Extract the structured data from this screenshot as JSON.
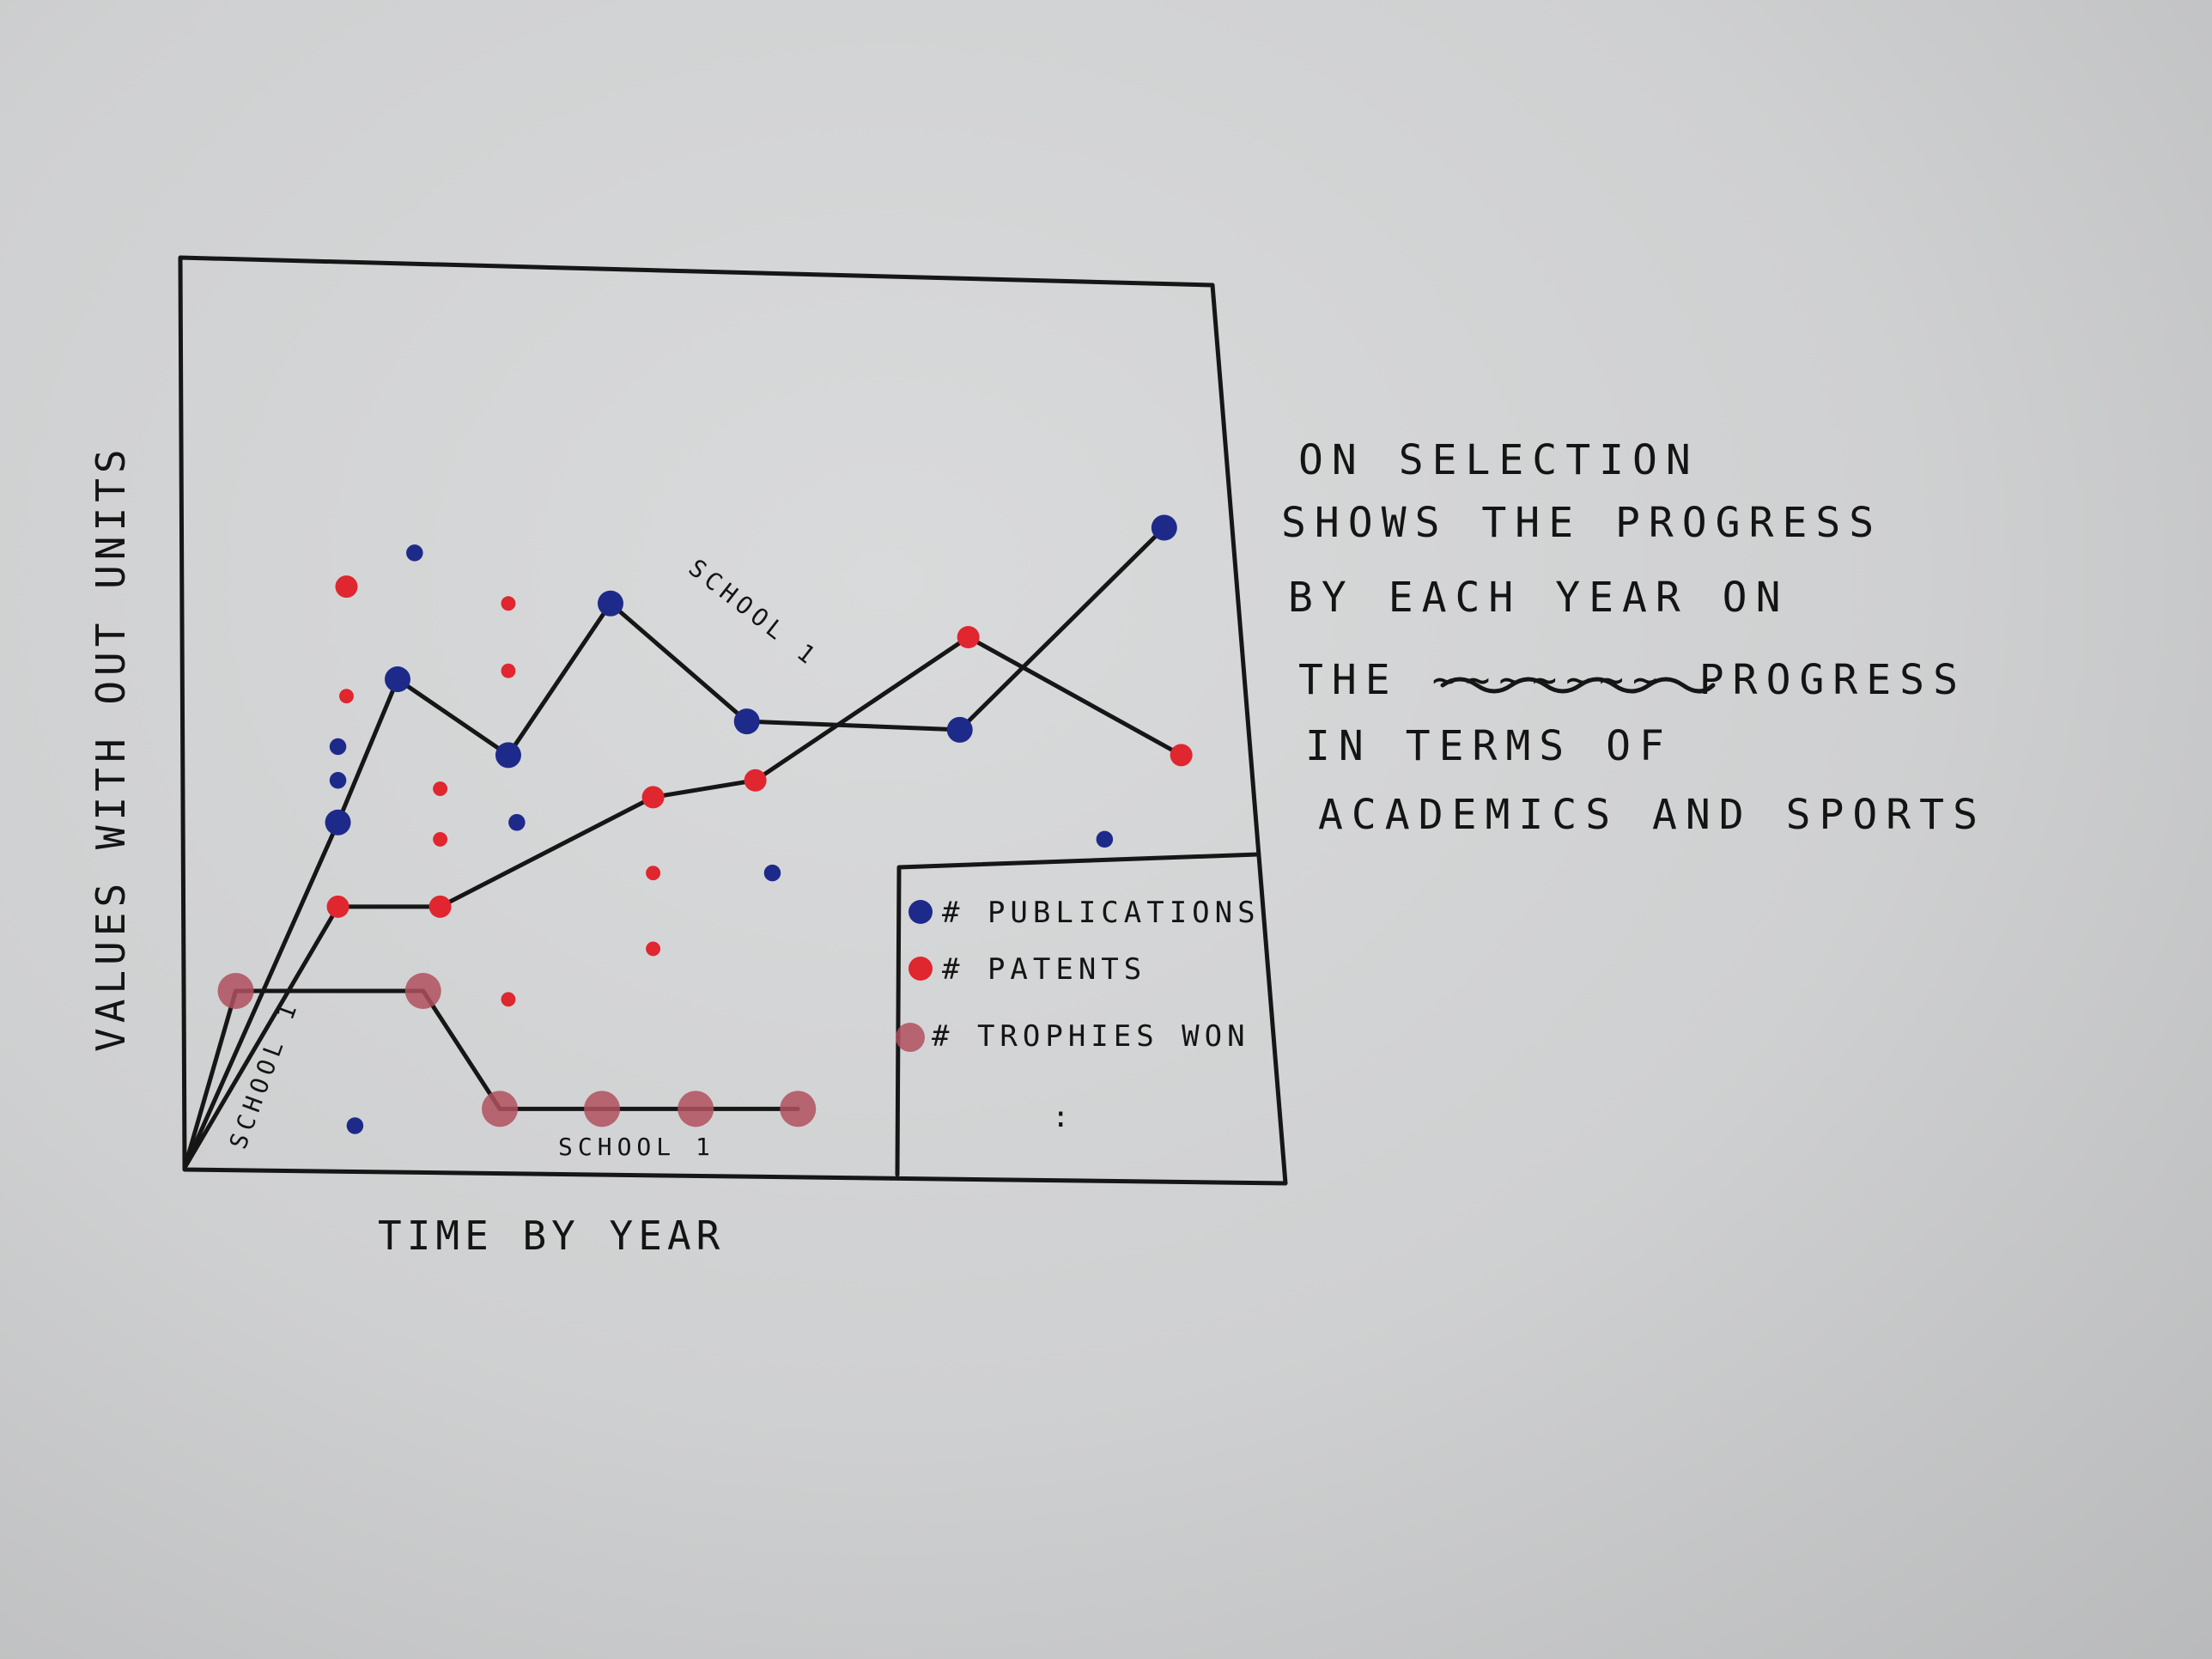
{
  "chart_data": {
    "type": "scatter",
    "title": "",
    "xlabel": "TIME BY YEAR",
    "ylabel": "VALUES WITH OUT UNITS",
    "grid": false,
    "legend": {
      "placement": "bottom-right-inside",
      "entries": [
        {
          "label": "# PUBLICATIONS",
          "color": "#1e2a8a"
        },
        {
          "label": "# PATENTS",
          "color": "#e0262f"
        },
        {
          "label": "# TROPHIES WON",
          "color": "#b0505e"
        }
      ],
      "ellipsis": ":"
    },
    "xlim": [
      0,
      12.5
    ],
    "ylim": [
      0,
      10.5
    ],
    "lines": [
      {
        "label": "SCHOOL 1",
        "series": "# PUBLICATIONS",
        "x": [
          0,
          1.8,
          2.5,
          3.8,
          5.0,
          6.6,
          9.1,
          11.5
        ],
        "y": [
          0,
          4.1,
          5.8,
          4.9,
          6.7,
          5.3,
          5.2,
          7.6
        ]
      },
      {
        "label": "SCHOOL 1",
        "series": "# PATENTS",
        "x": [
          0,
          1.8,
          3.0,
          5.5,
          6.7,
          9.2,
          11.7
        ],
        "y": [
          0,
          3.1,
          3.1,
          4.4,
          4.6,
          6.3,
          4.9
        ]
      },
      {
        "label": "SCHOOL 1",
        "series": "# TROPHIES WON",
        "x": [
          0,
          0.6,
          2.8,
          3.7,
          4.9,
          6.0,
          7.2
        ],
        "y": [
          0,
          2.1,
          2.1,
          0.7,
          0.7,
          0.7,
          0.7
        ]
      }
    ],
    "series": [
      {
        "name": "# PUBLICATIONS",
        "color": "#1e2a8a",
        "x": [
          1.8,
          2.5,
          3.8,
          5.0,
          6.6,
          9.1,
          11.5,
          2.7,
          1.8,
          1.8,
          3.9,
          6.9,
          10.8,
          2.0
        ],
        "y": [
          4.1,
          5.8,
          4.9,
          6.7,
          5.3,
          5.2,
          7.6,
          7.3,
          5.0,
          4.6,
          4.1,
          3.5,
          3.9,
          0.5
        ]
      },
      {
        "name": "# PATENTS",
        "color": "#e0262f",
        "x": [
          1.8,
          3.0,
          5.5,
          6.7,
          9.2,
          11.7,
          1.9,
          1.9,
          3.8,
          3.8,
          3.0,
          3.0,
          5.5,
          5.5,
          3.8
        ],
        "y": [
          3.1,
          3.1,
          4.4,
          4.6,
          6.3,
          4.9,
          6.9,
          5.6,
          6.7,
          5.9,
          4.5,
          3.9,
          3.5,
          2.6,
          2.0
        ]
      },
      {
        "name": "# TROPHIES WON",
        "color": "#b0505e",
        "x": [
          0.6,
          2.8,
          3.7,
          4.9,
          6.0,
          7.2
        ],
        "y": [
          2.1,
          2.1,
          0.7,
          0.7,
          0.7,
          0.7
        ]
      }
    ]
  },
  "note": {
    "lines": [
      "ON SELECTION",
      "SHOWS THE PROGRESS",
      "BY EACH YEAR ON",
      "THE ~~~~~~~ PROGRESS",
      "IN TERMS OF",
      "ACADEMICS AND SPORTS"
    ]
  }
}
